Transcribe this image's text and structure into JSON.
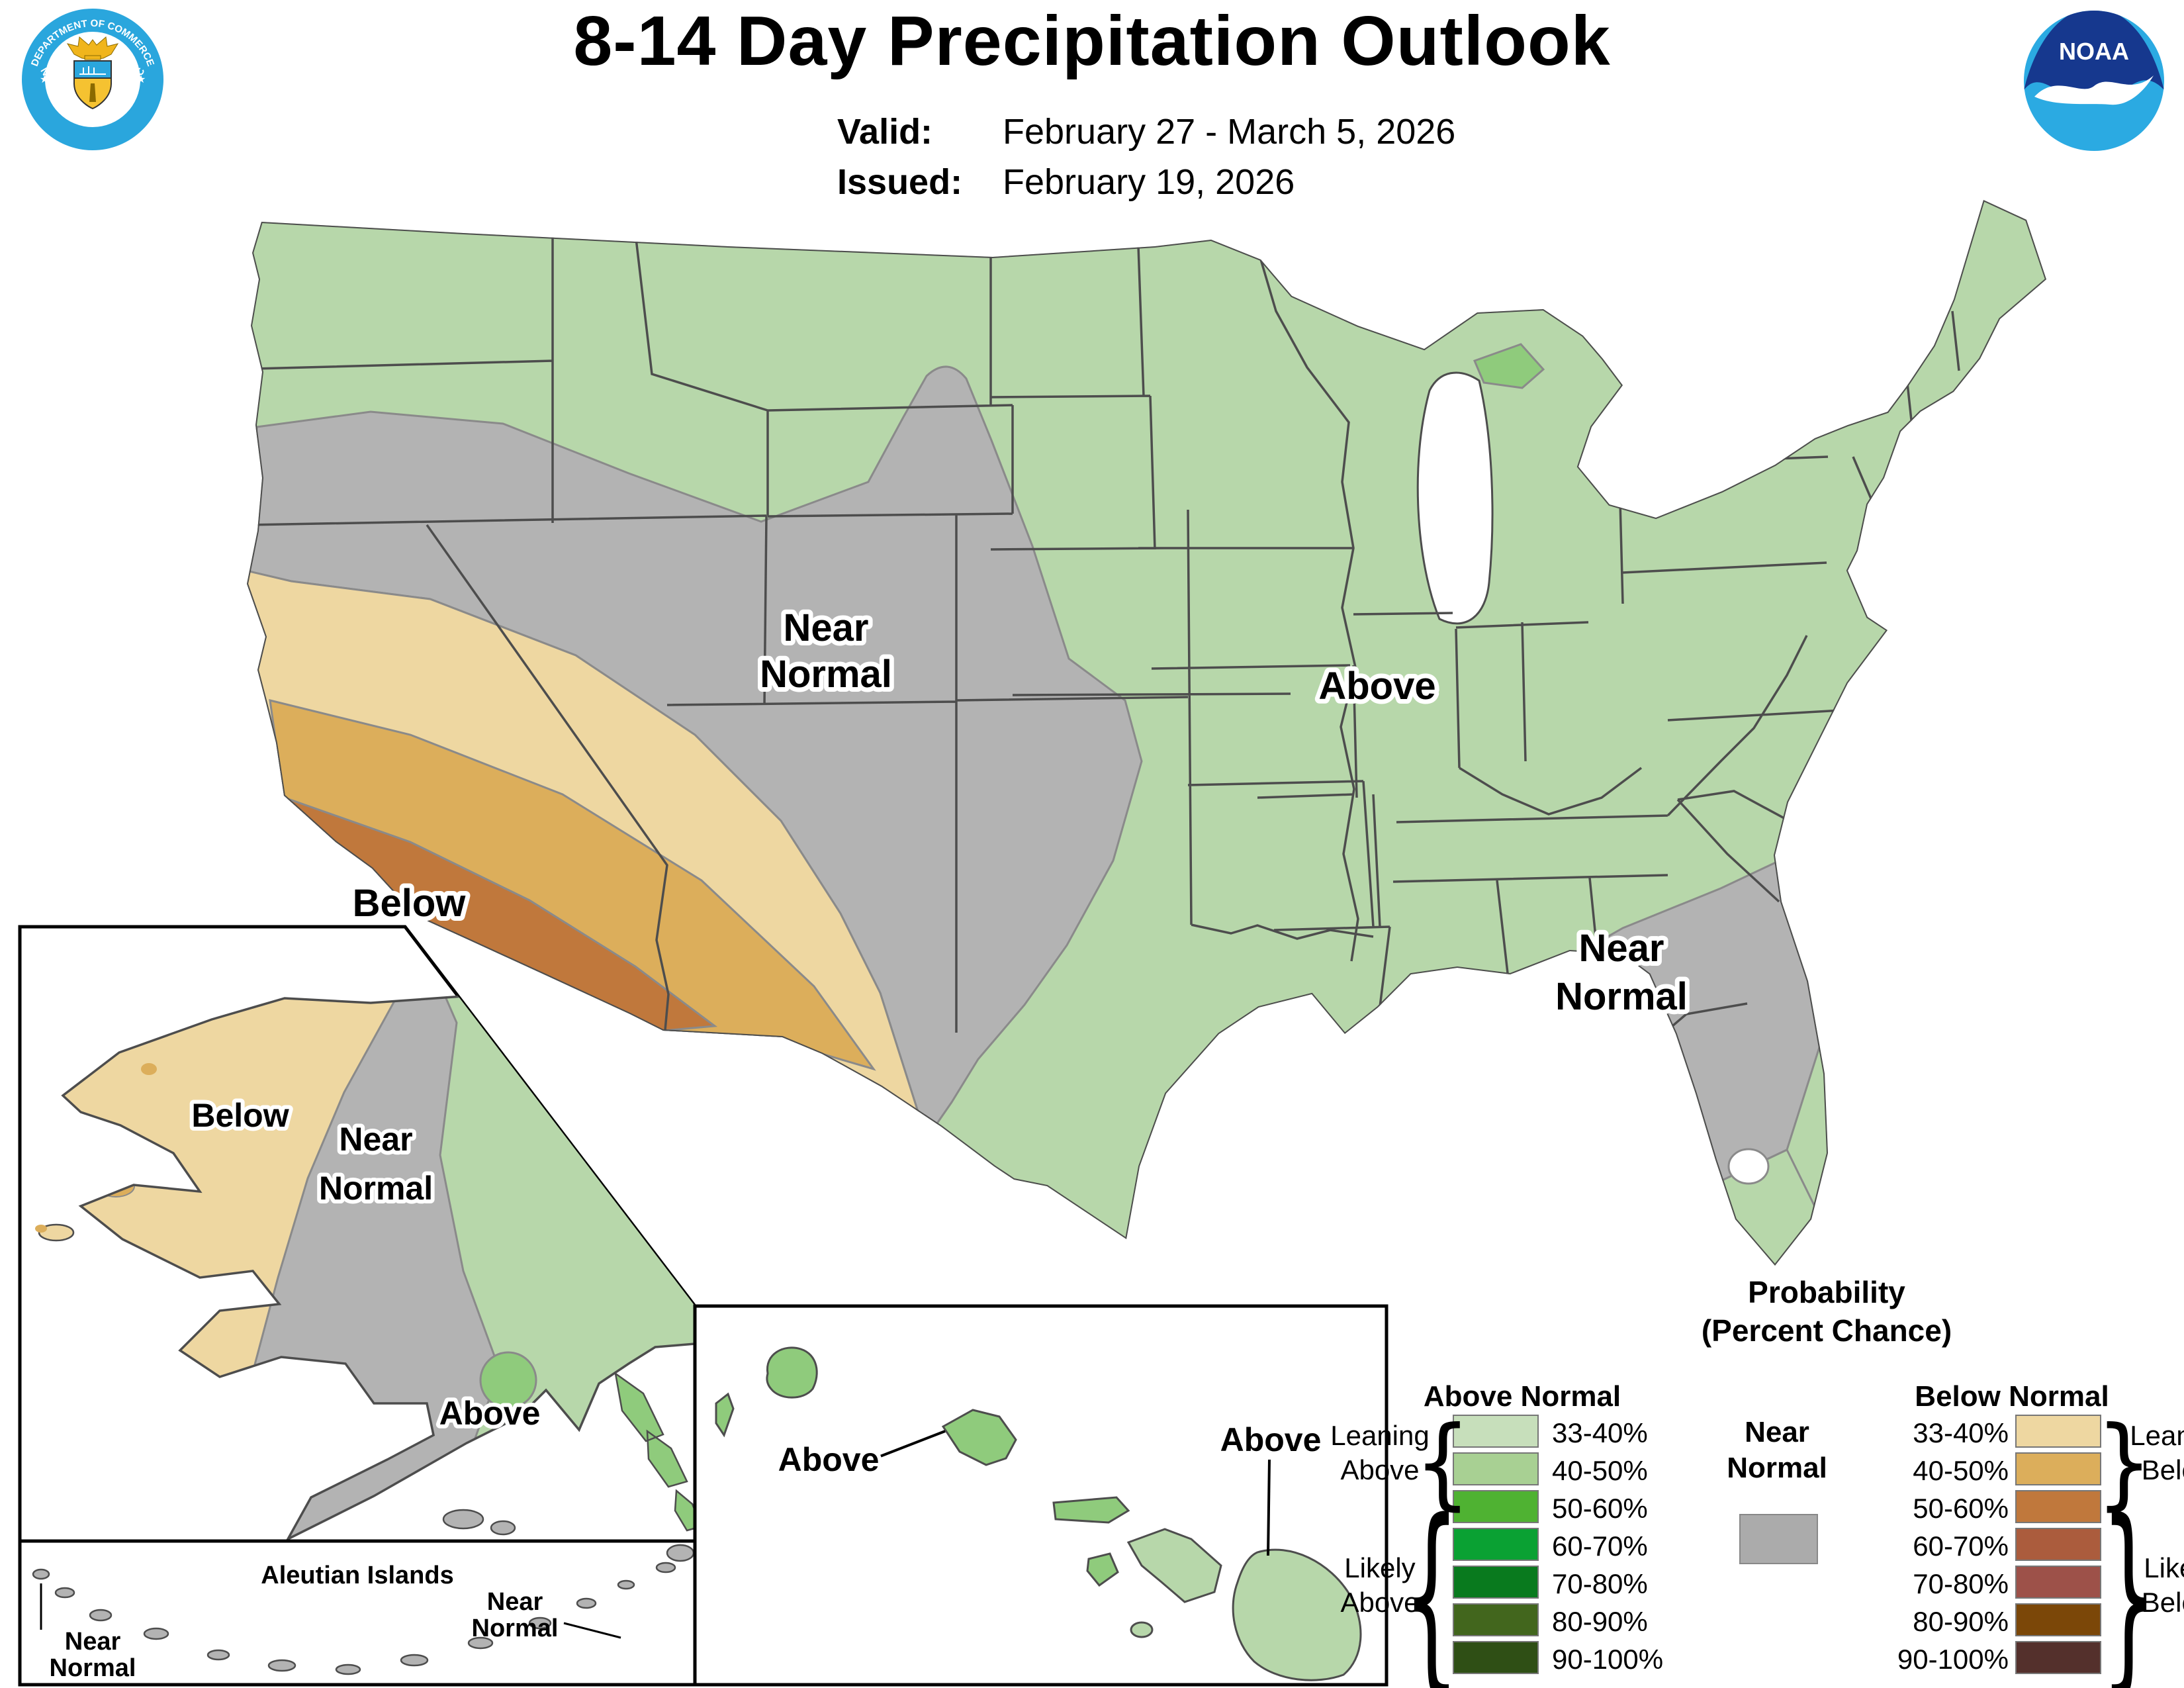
{
  "header": {
    "title": "8-14 Day Precipitation Outlook",
    "valid_label": "Valid:",
    "valid_value": "February 27 - March 5, 2026",
    "issued_label": "Issued:",
    "issued_value": "February 19, 2026"
  },
  "logos": {
    "noaa_text": "NOAA",
    "doc_ring_top": "DEPARTMENT OF COMMERCE",
    "doc_ring_bottom": "UNITED STATES OF AMERICA"
  },
  "labels": {
    "conus_central_1": "Near",
    "conus_central_2": "Normal",
    "conus_above": "Above",
    "conus_below": "Below",
    "conus_se_1": "Near",
    "conus_se_2": "Normal",
    "alaska_below": "Below",
    "alaska_near_1": "Near",
    "alaska_near_2": "Normal",
    "alaska_above": "Above",
    "hawaii_above_west": "Above",
    "hawaii_above_east": "Above",
    "aleutian_title": "Aleutian Islands",
    "aleutian_left_1": "Near",
    "aleutian_left_2": "Normal",
    "aleutian_right_1": "Near",
    "aleutian_right_2": "Normal"
  },
  "legend": {
    "title_1": "Probability",
    "title_2": "(Percent Chance)",
    "above_header": "Above Normal",
    "below_header": "Below Normal",
    "near_label_1": "Near",
    "near_label_2": "Normal",
    "leaning_above_1": "Leaning",
    "leaning_above_2": "Above",
    "likely_above_1": "Likely",
    "likely_above_2": "Above",
    "leaning_below_1": "Leaning",
    "leaning_below_2": "Below",
    "likely_below_1": "Likely",
    "likely_below_2": "Below",
    "rows": [
      {
        "pct": "33-40%",
        "above": "#c7dfbb",
        "below": "#eed7a1"
      },
      {
        "pct": "40-50%",
        "above": "#a8d093",
        "below": "#dcae5b"
      },
      {
        "pct": "50-60%",
        "above": "#4fb232",
        "below": "#c0783c"
      },
      {
        "pct": "60-70%",
        "above": "#0aa133",
        "below": "#ab5c3d"
      },
      {
        "pct": "70-80%",
        "above": "#097a1e",
        "below": "#9d5149"
      },
      {
        "pct": "80-90%",
        "above": "#42661d",
        "below": "#7b4708"
      },
      {
        "pct": "90-100%",
        "above": "#2f4f15",
        "below": "#54302c"
      }
    ],
    "near_swatch": "#ababab"
  },
  "colors": {
    "above_33_40": "#b7d7aa",
    "above_40_50": "#8fcb7c",
    "near_normal": "#b3b3b3",
    "below_33_40": "#eed7a1",
    "below_40_50": "#dcae5b",
    "below_50_60": "#c0783c",
    "border_dark": "#4d4d4d",
    "region_edge": "#8a8a8a",
    "noaa_dark_blue": "#16388e",
    "noaa_light_blue": "#2baae2",
    "doc_blue": "#2aa6dd",
    "doc_gold": "#f0b51c"
  },
  "map_regions": [
    {
      "area": "CONUS northern tier, Midwest, East, South",
      "outlook": "Above",
      "probability": "33-40%"
    },
    {
      "area": "Upper Michigan (eastern tip)",
      "outlook": "Above",
      "probability": "40-50%"
    },
    {
      "area": "Great Basin, central Rockies, central Plains, Pacific Northwest interior",
      "outlook": "Near Normal"
    },
    {
      "area": "Southeast: Alabama, Georgia, most of Florida, coastal Carolinas",
      "outlook": "Near Normal"
    },
    {
      "area": "California, Nevada, Arizona, New Mexico, far west Texas",
      "outlook": "Below",
      "probability": "33-40%"
    },
    {
      "area": "Central/Southern California, southern Nevada, central Arizona",
      "outlook": "Below",
      "probability": "40-50%"
    },
    {
      "area": "Southwestern California, southwest Arizona",
      "outlook": "Below",
      "probability": "50-60%"
    },
    {
      "area": "Western Alaska",
      "outlook": "Below",
      "probability": "33-40%"
    },
    {
      "area": "Central Alaska, Aleutians",
      "outlook": "Near Normal"
    },
    {
      "area": "Eastern Alaska, panhandle",
      "outlook": "Above",
      "probability": "33-50%"
    },
    {
      "area": "Hawaii",
      "outlook": "Above",
      "probability": "33-50%"
    },
    {
      "area": "South Florida tip",
      "outlook": "Above",
      "probability": "33-40%"
    }
  ]
}
